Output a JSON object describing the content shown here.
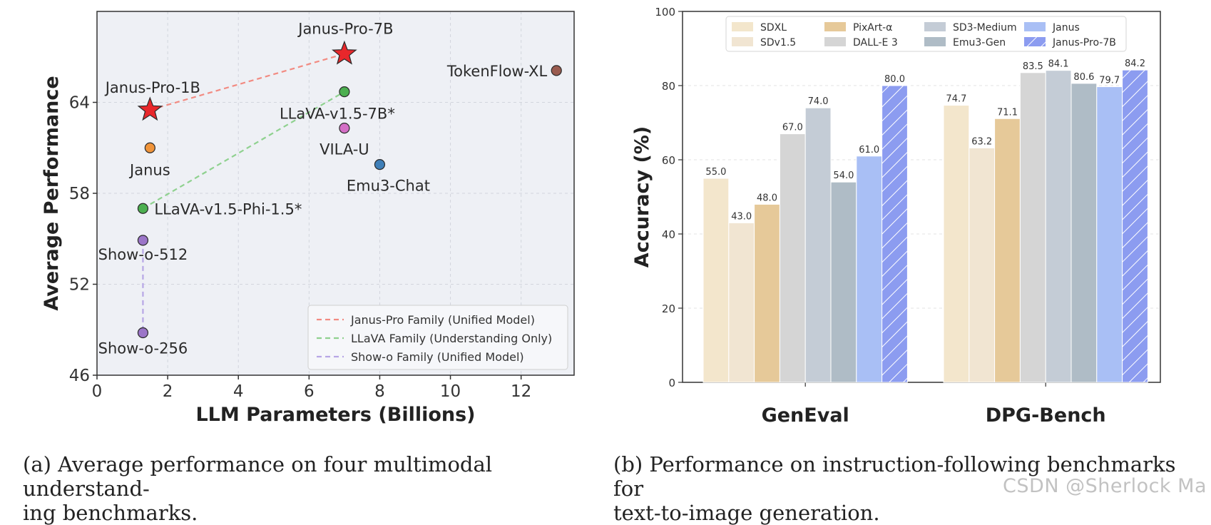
{
  "captions": {
    "a": "(a) Average performance on four multimodal understand-ing benchmarks.",
    "a_line1": "(a)  Average performance on four multimodal understand-",
    "a_line2": "ing benchmarks.",
    "b_line1": "(b)  Performance on instruction-following benchmarks for",
    "b_line2": "text-to-image generation."
  },
  "watermark": "CSDN @Sherlock  Ma",
  "chart_data": [
    {
      "type": "scatter",
      "xlabel": "LLM Parameters (Billions)",
      "ylabel": "Average Performance",
      "xlim": [
        0,
        13.5
      ],
      "ylim": [
        46,
        70
      ],
      "xticks": [
        0,
        2,
        4,
        6,
        8,
        10,
        12
      ],
      "yticks": [
        46,
        52,
        58,
        64
      ],
      "grid": true,
      "legend_position": "bottom-right",
      "points": [
        {
          "label": "Janus-Pro-1B",
          "x": 1.5,
          "y": 63.5,
          "marker": "star",
          "color": "#e8272b"
        },
        {
          "label": "Janus-Pro-7B",
          "x": 7.0,
          "y": 67.2,
          "marker": "star",
          "color": "#e8272b"
        },
        {
          "label": "Janus",
          "x": 1.5,
          "y": 61.0,
          "marker": "circle",
          "color": "#f0943a"
        },
        {
          "label": "LLaVA-v1.5-7B*",
          "x": 7.0,
          "y": 64.7,
          "marker": "circle",
          "color": "#4caf50"
        },
        {
          "label": "LLaVA-v1.5-Phi-1.5*",
          "x": 1.3,
          "y": 57.0,
          "marker": "circle",
          "color": "#4caf50"
        },
        {
          "label": "VILA-U",
          "x": 7.0,
          "y": 62.3,
          "marker": "circle",
          "color": "#d46fc6"
        },
        {
          "label": "Emu3-Chat",
          "x": 8.0,
          "y": 59.9,
          "marker": "circle",
          "color": "#3f7fb8"
        },
        {
          "label": "TokenFlow-XL",
          "x": 13.0,
          "y": 66.1,
          "marker": "circle",
          "color": "#9a5b4f"
        },
        {
          "label": "Show-o-512",
          "x": 1.3,
          "y": 54.9,
          "marker": "circle",
          "color": "#9b75c8"
        },
        {
          "label": "Show-o-256",
          "x": 1.3,
          "y": 48.8,
          "marker": "circle",
          "color": "#9b75c8"
        }
      ],
      "families": [
        {
          "name": "Janus-Pro Family (Unified Model)",
          "color": "#f28b82",
          "from": "Janus-Pro-1B",
          "to": "Janus-Pro-7B"
        },
        {
          "name": "LLaVA Family (Understanding Only)",
          "color": "#8fd18f",
          "from": "LLaVA-v1.5-Phi-1.5*",
          "to": "LLaVA-v1.5-7B*"
        },
        {
          "name": "Show-o Family (Unified Model)",
          "color": "#b7a6e6",
          "from": "Show-o-512",
          "to": "Show-o-256"
        }
      ]
    },
    {
      "type": "bar",
      "ylabel": "Accuracy (%)",
      "xlabel": "",
      "ylim": [
        0,
        100
      ],
      "yticks": [
        0,
        20,
        40,
        60,
        80,
        100
      ],
      "grid": true,
      "legend_position": "top",
      "categories": [
        "GenEval",
        "DPG-Bench"
      ],
      "series": [
        {
          "name": "SDXL",
          "color": "#f3e6cc",
          "values": [
            55.0,
            74.7
          ]
        },
        {
          "name": "SDv1.5",
          "color": "#f1e5d2",
          "values": [
            43.0,
            63.2
          ]
        },
        {
          "name": "PixArt-α",
          "color": "#e6c999",
          "values": [
            48.0,
            71.1
          ]
        },
        {
          "name": "DALL-E 3",
          "color": "#d5d5d5",
          "values": [
            67.0,
            83.5
          ]
        },
        {
          "name": "SD3-Medium",
          "color": "#c4ccd6",
          "values": [
            74.0,
            84.1
          ]
        },
        {
          "name": "Emu3-Gen",
          "color": "#afbcc6",
          "values": [
            54.0,
            80.6
          ]
        },
        {
          "name": "Janus",
          "color": "#a9bff5",
          "values": [
            61.0,
            79.7
          ]
        },
        {
          "name": "Janus-Pro-7B",
          "color": "#8c9cf0",
          "hatch": true,
          "values": [
            80.0,
            84.2
          ]
        }
      ]
    }
  ]
}
